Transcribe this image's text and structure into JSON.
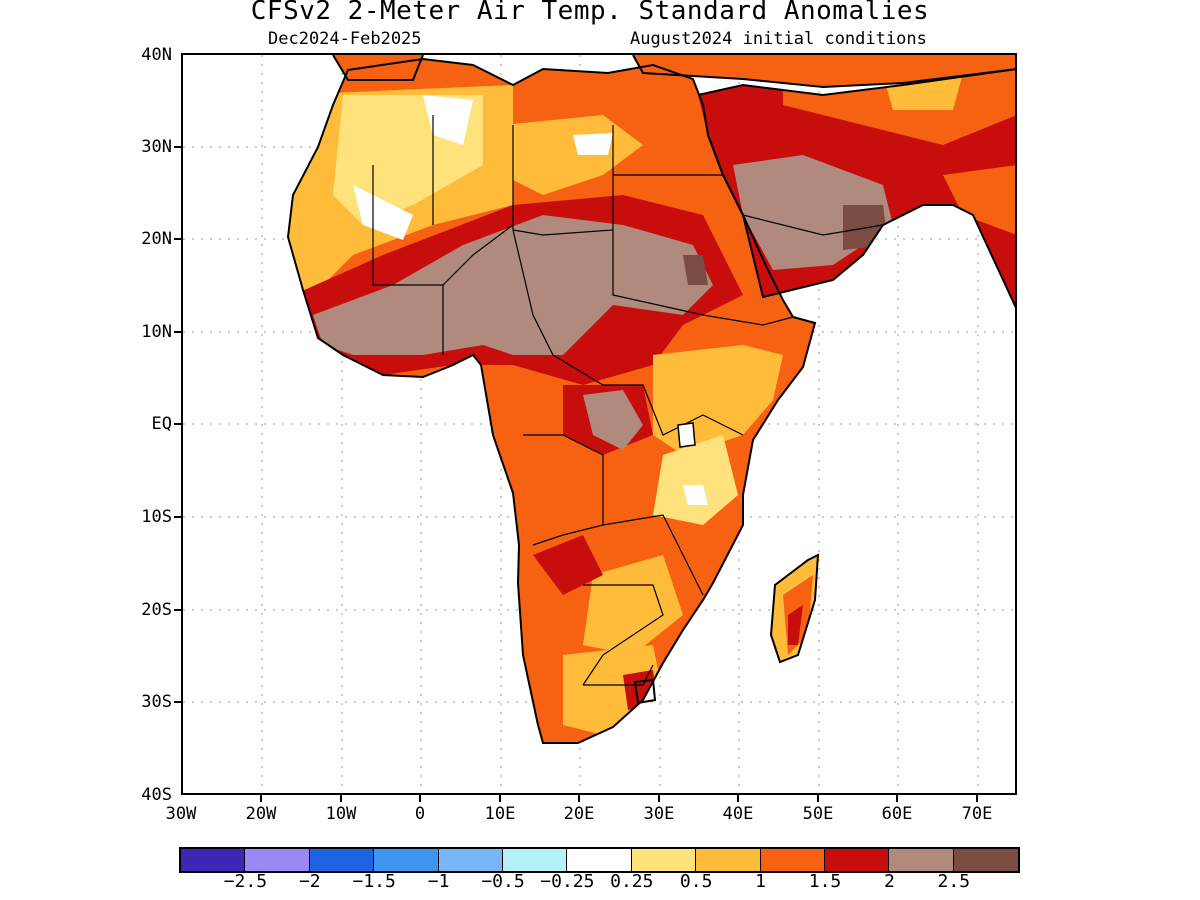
{
  "title": "CFSv2 2-Meter Air Temp. Standard Anomalies",
  "subtitle_left": "Dec2024-Feb2025",
  "subtitle_right": "August2024 initial conditions",
  "lat_labels": [
    "40N",
    "30N",
    "20N",
    "10N",
    "EQ",
    "10S",
    "20S",
    "30S",
    "40S"
  ],
  "lon_labels": [
    "30W",
    "20W",
    "10W",
    "0",
    "10E",
    "20E",
    "30E",
    "40E",
    "50E",
    "60E",
    "70E"
  ],
  "colorbar": {
    "colors": [
      "#3c26b4",
      "#9b88f4",
      "#1f63e0",
      "#3d95f0",
      "#78b6f7",
      "#b3f0f8",
      "#ffffff",
      "#ffe27c",
      "#ffbc3a",
      "#f76112",
      "#c80d0d",
      "#b08a7c",
      "#7a4c42"
    ],
    "labels": [
      "−2.5",
      "−2",
      "−1.5",
      "−1",
      "−0.5",
      "−0.25",
      "0.25",
      "0.5",
      "1",
      "1.5",
      "2",
      "2.5"
    ]
  }
}
